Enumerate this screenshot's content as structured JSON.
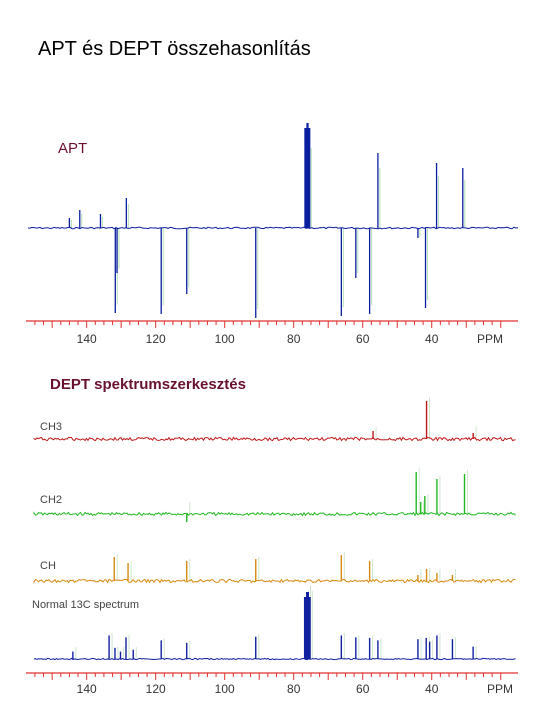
{
  "title": "APT és DEPT összehasonlítás",
  "apt_label": "APT",
  "dept_heading": "DEPT spektrumszerkesztés",
  "colors": {
    "apt": "#0a1ea0",
    "ch3": "#c01818",
    "ch2": "#22b822",
    "ch": "#d88a10",
    "normal": "#1020a0",
    "axis": "#e03030",
    "label": "#6a1030"
  },
  "chart_data": [
    {
      "type": "line",
      "name": "apt",
      "title": "APT",
      "xlabel": "PPM",
      "x_reversed": true,
      "xticks": [
        140,
        120,
        100,
        80,
        60,
        40
      ],
      "xtick_labels": [
        "140",
        "120",
        "100",
        "80",
        "60",
        "40"
      ],
      "unit_label": "PPM",
      "peaks": [
        {
          "ppm": 145.0,
          "height": 10
        },
        {
          "ppm": 142.0,
          "height": 18
        },
        {
          "ppm": 136.0,
          "height": 14
        },
        {
          "ppm": 131.7,
          "height": -85
        },
        {
          "ppm": 131.2,
          "height": -45
        },
        {
          "ppm": 128.5,
          "height": 30
        },
        {
          "ppm": 118.4,
          "height": -86
        },
        {
          "ppm": 111.0,
          "height": -66
        },
        {
          "ppm": 91.0,
          "height": -90
        },
        {
          "ppm": 76.6,
          "height": 100
        },
        {
          "ppm": 76.0,
          "height": 105
        },
        {
          "ppm": 75.5,
          "height": 100
        },
        {
          "ppm": 66.2,
          "height": -88
        },
        {
          "ppm": 62.0,
          "height": -50
        },
        {
          "ppm": 58.0,
          "height": -86
        },
        {
          "ppm": 55.6,
          "height": 75
        },
        {
          "ppm": 44.0,
          "height": -10
        },
        {
          "ppm": 41.8,
          "height": -80
        },
        {
          "ppm": 38.6,
          "height": 65
        },
        {
          "ppm": 31.0,
          "height": 60
        }
      ]
    },
    {
      "type": "line",
      "name": "dept",
      "xlabel": "PPM",
      "x_reversed": true,
      "xticks": [
        140,
        120,
        100,
        80,
        60,
        40
      ],
      "xtick_labels": [
        "140",
        "120",
        "100",
        "80",
        "60",
        "40"
      ],
      "unit_label": "PPM",
      "series": [
        {
          "name": "CH3",
          "peaks": [
            {
              "ppm": 41.5,
              "height": 38
            },
            {
              "ppm": 57.0,
              "height": 8
            },
            {
              "ppm": 28.0,
              "height": 6
            }
          ]
        },
        {
          "name": "CH2",
          "peaks": [
            {
              "ppm": 44.5,
              "height": 42
            },
            {
              "ppm": 43.2,
              "height": 12
            },
            {
              "ppm": 42.0,
              "height": 18
            },
            {
              "ppm": 38.5,
              "height": 35
            },
            {
              "ppm": 30.5,
              "height": 40
            },
            {
              "ppm": 111.0,
              "height": -8
            }
          ]
        },
        {
          "name": "CH",
          "peaks": [
            {
              "ppm": 132.0,
              "height": 24
            },
            {
              "ppm": 128.0,
              "height": 18
            },
            {
              "ppm": 111.0,
              "height": 20
            },
            {
              "ppm": 91.0,
              "height": 22
            },
            {
              "ppm": 66.2,
              "height": 26
            },
            {
              "ppm": 58.0,
              "height": 20
            },
            {
              "ppm": 44.0,
              "height": 6
            },
            {
              "ppm": 41.5,
              "height": 12
            },
            {
              "ppm": 38.5,
              "height": 8
            },
            {
              "ppm": 34.0,
              "height": 6
            }
          ]
        },
        {
          "name": "Normal 13C spectrum",
          "peaks": [
            {
              "ppm": 144.0,
              "height": 12
            },
            {
              "ppm": 133.5,
              "height": 38
            },
            {
              "ppm": 131.8,
              "height": 18
            },
            {
              "ppm": 130.2,
              "height": 12
            },
            {
              "ppm": 128.6,
              "height": 35
            },
            {
              "ppm": 126.5,
              "height": 15
            },
            {
              "ppm": 118.4,
              "height": 30
            },
            {
              "ppm": 111.0,
              "height": 26
            },
            {
              "ppm": 91.0,
              "height": 36
            },
            {
              "ppm": 76.6,
              "height": 100
            },
            {
              "ppm": 76.0,
              "height": 108
            },
            {
              "ppm": 75.5,
              "height": 100
            },
            {
              "ppm": 66.2,
              "height": 38
            },
            {
              "ppm": 62.0,
              "height": 35
            },
            {
              "ppm": 58.0,
              "height": 34
            },
            {
              "ppm": 55.6,
              "height": 30
            },
            {
              "ppm": 44.0,
              "height": 32
            },
            {
              "ppm": 41.6,
              "height": 34
            },
            {
              "ppm": 40.6,
              "height": 28
            },
            {
              "ppm": 38.5,
              "height": 38
            },
            {
              "ppm": 34.0,
              "height": 32
            },
            {
              "ppm": 28.0,
              "height": 20
            }
          ]
        }
      ]
    }
  ]
}
